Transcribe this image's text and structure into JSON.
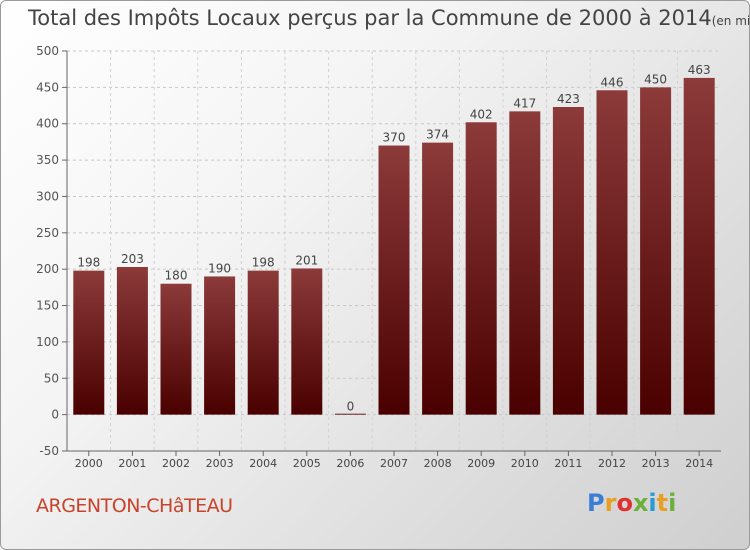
{
  "header": {
    "title": "Total des Impôts Locaux perçus par la Commune de 2000 à 2014",
    "unit": "(en milliers d'€)"
  },
  "footer": {
    "commune": "ARGENTON-CHâTEAU",
    "logo": "Proxiti",
    "logo_colors": [
      "#3a7fd5",
      "#e8a020",
      "#e03030",
      "#6ab03a",
      "#2a9ad5",
      "#e8a020",
      "#6ab03a"
    ]
  },
  "chart_data": {
    "type": "bar",
    "categories": [
      "2000",
      "2001",
      "2002",
      "2003",
      "2004",
      "2005",
      "2006",
      "2007",
      "2008",
      "2009",
      "2010",
      "2011",
      "2012",
      "2013",
      "2014"
    ],
    "values": [
      198,
      203,
      180,
      190,
      198,
      201,
      0,
      370,
      374,
      402,
      417,
      423,
      446,
      450,
      463
    ],
    "ylim": [
      -50,
      500
    ],
    "yticks": [
      -50,
      0,
      50,
      100,
      150,
      200,
      250,
      300,
      350,
      400,
      450,
      500
    ],
    "grid": true,
    "bar_color_top": "#8c3a3a",
    "bar_color_bottom": "#4a0000",
    "legend": "none"
  }
}
